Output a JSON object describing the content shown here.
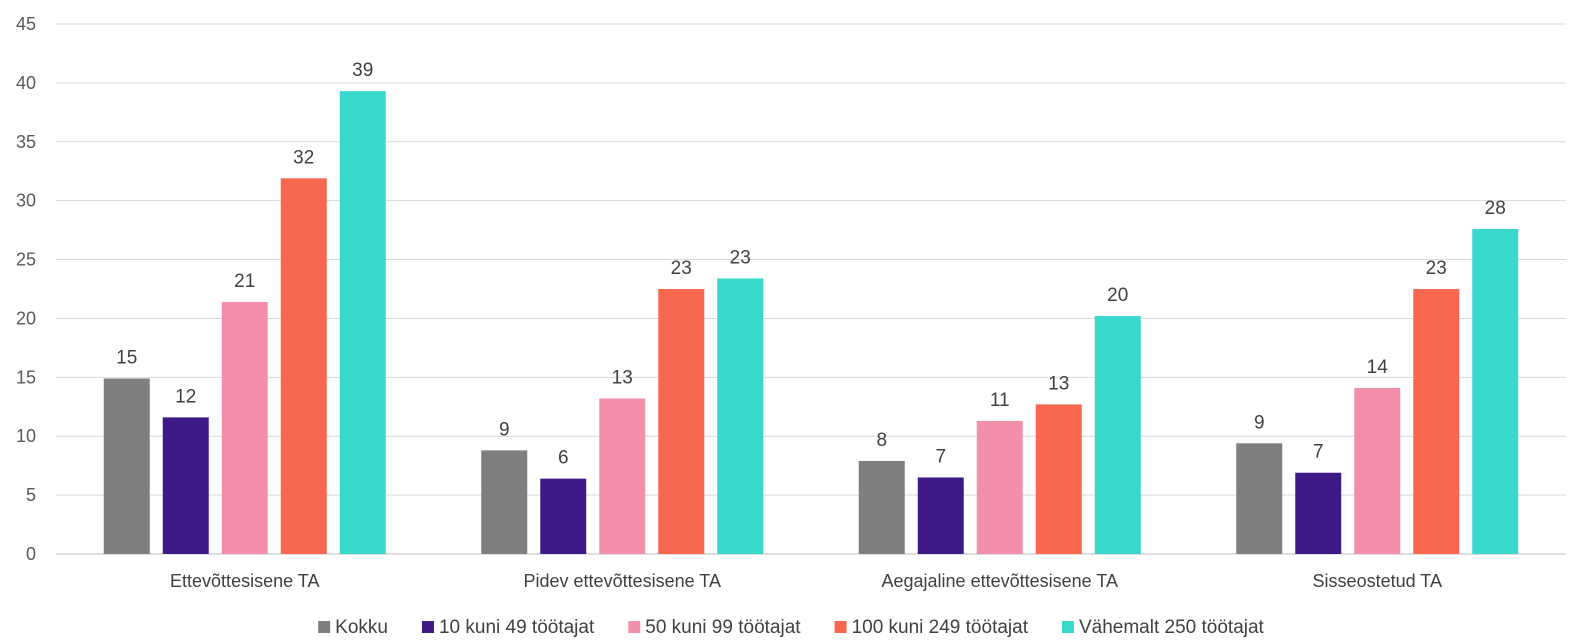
{
  "chart_data": {
    "type": "bar",
    "categories": [
      "Ettevõttesisene TA",
      "Pidev ettevõttesisene TA",
      "Aegajaline ettevõttesisene TA",
      "Sisseostetud TA"
    ],
    "ylim": [
      0,
      45
    ],
    "yticks": [
      0,
      5,
      10,
      15,
      20,
      25,
      30,
      35,
      40,
      45
    ],
    "grid": true,
    "legend_position": "bottom",
    "series": [
      {
        "name": "Kokku",
        "color": "#7f7f7f",
        "values": [
          14.9,
          8.8,
          7.9,
          9.4
        ],
        "labels": [
          "15",
          "9",
          "8",
          "9"
        ]
      },
      {
        "name": "10 kuni 49 töötajat",
        "color": "#3d1a87",
        "values": [
          11.6,
          6.4,
          6.5,
          6.9
        ],
        "labels": [
          "12",
          "6",
          "7",
          "7"
        ]
      },
      {
        "name": "50 kuni 99 töötajat",
        "color": "#f48fab",
        "values": [
          21.4,
          13.2,
          11.3,
          14.1
        ],
        "labels": [
          "21",
          "13",
          "11",
          "14"
        ]
      },
      {
        "name": "100 kuni 249 töötajat",
        "color": "#f7664e",
        "values": [
          31.9,
          22.5,
          12.7,
          22.5
        ],
        "labels": [
          "32",
          "23",
          "13",
          "23"
        ]
      },
      {
        "name": "Vähemalt 250 töötajat",
        "color": "#38d8cc",
        "values": [
          39.3,
          23.4,
          20.2,
          27.6
        ],
        "labels": [
          "39",
          "23",
          "20",
          "28"
        ]
      }
    ]
  }
}
